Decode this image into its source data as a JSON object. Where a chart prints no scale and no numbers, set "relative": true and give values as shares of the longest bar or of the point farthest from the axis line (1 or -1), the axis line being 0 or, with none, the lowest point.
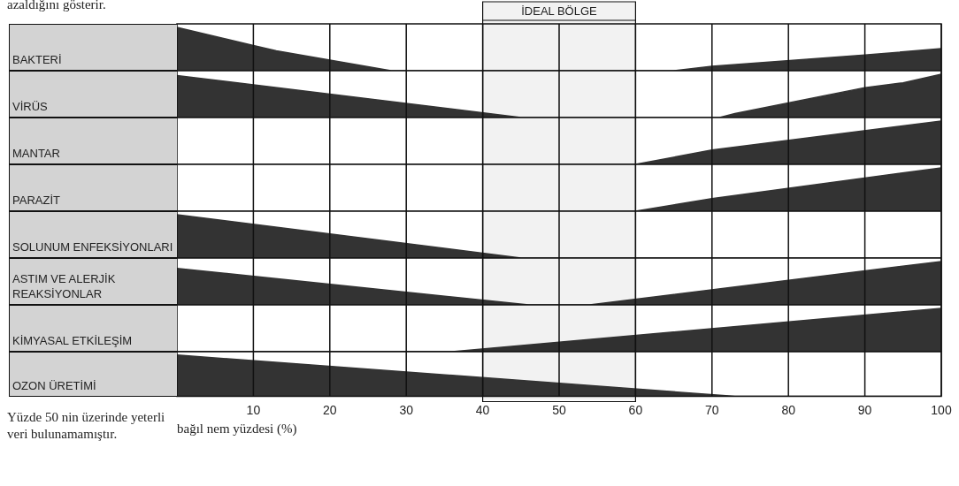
{
  "chart_data": [
    {
      "type": "area",
      "relative": true,
      "ylabel": "BAKTERİ",
      "color": "#333333",
      "x": [
        0,
        10,
        13,
        28,
        65,
        70,
        90,
        100
      ],
      "values": [
        1,
        0.58,
        0.46,
        0,
        0,
        0.1,
        0.36,
        0.51
      ],
      "xlim": [
        0,
        100
      ],
      "xticks": [
        10,
        20,
        30,
        40,
        50,
        60,
        70,
        80,
        90,
        100
      ],
      "tick_labels": false,
      "grid": "x",
      "annotations": [
        "azaldığını gösterir."
      ]
    },
    {
      "type": "area",
      "relative": true,
      "ylabel": "VİRÜS",
      "color": "#333333",
      "x": [
        0,
        45,
        71,
        73,
        90,
        95,
        100
      ],
      "values": [
        0.97,
        0,
        0,
        0.09,
        0.69,
        0.8,
        1
      ],
      "xlim": [
        0,
        100
      ],
      "xticks": [
        10,
        20,
        30,
        40,
        50,
        60,
        70,
        80,
        90,
        100
      ],
      "tick_labels": false,
      "grid": "x"
    },
    {
      "type": "area",
      "relative": true,
      "ylabel": "MANTAR",
      "color": "#333333",
      "x": [
        0,
        60,
        70,
        100
      ],
      "values": [
        0,
        0,
        0.33,
        1
      ],
      "xlim": [
        0,
        100
      ],
      "xticks": [
        10,
        20,
        30,
        40,
        50,
        60,
        70,
        80,
        90,
        100
      ],
      "tick_labels": false,
      "grid": "x"
    },
    {
      "type": "area",
      "relative": true,
      "ylabel": "PARAZİT",
      "color": "#333333",
      "x": [
        0,
        60,
        70,
        100
      ],
      "values": [
        0,
        0,
        0.29,
        1
      ],
      "xlim": [
        0,
        100
      ],
      "xticks": [
        10,
        20,
        30,
        40,
        50,
        60,
        70,
        80,
        90,
        100
      ],
      "tick_labels": false,
      "grid": "x"
    },
    {
      "type": "area",
      "relative": true,
      "ylabel": "SOLUNUM ENFEKSİYONLARI",
      "color": "#333333",
      "x": [
        0,
        45,
        100
      ],
      "values": [
        1,
        0,
        0
      ],
      "xlim": [
        0,
        100
      ],
      "xticks": [
        10,
        20,
        30,
        40,
        50,
        60,
        70,
        80,
        90,
        100
      ],
      "tick_labels": false,
      "grid": "x"
    },
    {
      "type": "area",
      "relative": true,
      "ylabel": "ASTIM VE ALERJİK REAKSİYONLAR",
      "color": "#333333",
      "x": [
        0,
        46,
        54,
        100
      ],
      "values": [
        0.84,
        0,
        0,
        1
      ],
      "xlim": [
        0,
        100
      ],
      "xticks": [
        10,
        20,
        30,
        40,
        50,
        60,
        70,
        80,
        90,
        100
      ],
      "tick_labels": false,
      "grid": "x"
    },
    {
      "type": "area",
      "relative": true,
      "ylabel": "KİMYASAL ETKİLEŞİM",
      "color": "#333333",
      "x": [
        0,
        36,
        100
      ],
      "values": [
        0,
        0,
        1
      ],
      "xlim": [
        0,
        100
      ],
      "xticks": [
        10,
        20,
        30,
        40,
        50,
        60,
        70,
        80,
        90,
        100
      ],
      "tick_labels": false,
      "grid": "x"
    },
    {
      "type": "area",
      "relative": true,
      "ylabel": "OZON ÜRETİMİ",
      "color": "#333333",
      "x": [
        0,
        73,
        100
      ],
      "values": [
        1,
        0,
        0
      ],
      "xlim": [
        0,
        100
      ],
      "xticks": [
        10,
        20,
        30,
        40,
        50,
        60,
        70,
        80,
        90,
        100
      ],
      "tick_labels": "x",
      "grid": "x",
      "bands": [
        {
          "axis": "x",
          "from": 40,
          "to": 60,
          "label": "İDEAL BÖLGE"
        }
      ],
      "xlabel": "bağıl nem yüzdesi (%)",
      "annotations": [
        "Yüzde 50 nin üzerinde yeterli veri bulunamamıştır."
      ]
    }
  ]
}
